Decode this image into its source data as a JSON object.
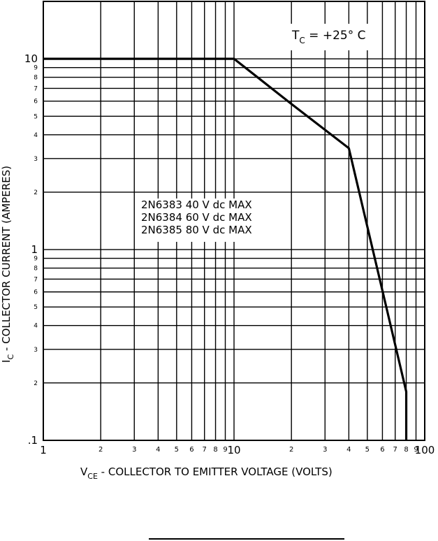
{
  "chart_data": {
    "type": "line",
    "xlabel": {
      "main": "V",
      "sub": "CE",
      "rest": " - COLLECTOR TO EMITTER VOLTAGE (VOLTS)"
    },
    "ylabel": {
      "main": "I",
      "sub": "C",
      "rest": " - COLLECTOR CURRENT (AMPERES)"
    },
    "condition": {
      "main": "T",
      "sub": "C",
      "rest": " = +25° C"
    },
    "annotations": [
      "2N6383 40 V dc MAX",
      "2N6384 60 V dc MAX",
      "2N6385 80 V dc MAX"
    ],
    "x": [
      1,
      10,
      20,
      40,
      80,
      80
    ],
    "values": [
      10,
      10,
      5.8,
      3.4,
      0.18,
      0.1
    ],
    "color": "#000000",
    "xscale": "log",
    "yscale": "log",
    "grid": true,
    "xlim": [
      1,
      100
    ],
    "ylim": [
      0.1,
      20
    ],
    "xticks": [
      1,
      2,
      3,
      4,
      5,
      6,
      7,
      8,
      9,
      10,
      {
        "value": 20,
        "label": "2"
      },
      {
        "value": 30,
        "label": "3"
      },
      {
        "value": 40,
        "label": "4"
      },
      {
        "value": 50,
        "label": "5"
      },
      {
        "value": 60,
        "label": "6"
      },
      {
        "value": 70,
        "label": "7"
      },
      {
        "value": 80,
        "label": "8"
      },
      {
        "value": 90,
        "label": "9"
      },
      100
    ],
    "yticks": [
      {
        "value": 0.1,
        "label": ".1"
      },
      {
        "value": 0.2,
        "label": "2"
      },
      {
        "value": 0.3,
        "label": "3"
      },
      {
        "value": 0.4,
        "label": "4"
      },
      {
        "value": 0.5,
        "label": "5"
      },
      {
        "value": 0.6,
        "label": "6"
      },
      {
        "value": 0.7,
        "label": "7"
      },
      {
        "value": 0.8,
        "label": "8"
      },
      {
        "value": 0.9,
        "label": "9"
      },
      1,
      2,
      3,
      4,
      5,
      6,
      7,
      8,
      9,
      10
    ]
  }
}
